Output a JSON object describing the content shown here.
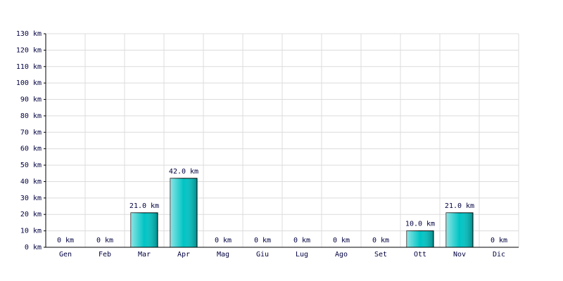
{
  "chart_data": {
    "type": "bar",
    "categories": [
      "Gen",
      "Feb",
      "Mar",
      "Apr",
      "Mag",
      "Giu",
      "Lug",
      "Ago",
      "Set",
      "Ott",
      "Nov",
      "Dic"
    ],
    "values": [
      0,
      0,
      21,
      42,
      0,
      0,
      0,
      0,
      0,
      10,
      21,
      0
    ],
    "value_labels": [
      "0 km",
      "0 km",
      "21.0 km",
      "42.0 km",
      "0 km",
      "0 km",
      "0 km",
      "0 km",
      "0 km",
      "10.0 km",
      "21.0 km",
      "0 km"
    ],
    "color": "#00c4c4",
    "ylim": [
      0,
      130
    ],
    "yticks": [
      {
        "value": 0,
        "label": "0 km"
      },
      {
        "value": 10,
        "label": "10 km"
      },
      {
        "value": 20,
        "label": "20 km"
      },
      {
        "value": 30,
        "label": "30 km"
      },
      {
        "value": 40,
        "label": "40 km"
      },
      {
        "value": 50,
        "label": "50 km"
      },
      {
        "value": 60,
        "label": "60 km"
      },
      {
        "value": 70,
        "label": "70 km"
      },
      {
        "value": 80,
        "label": "80 km"
      },
      {
        "value": 90,
        "label": "90 km"
      },
      {
        "value": 100,
        "label": "100 km"
      },
      {
        "value": 110,
        "label": "110 km"
      },
      {
        "value": 120,
        "label": "120 km"
      },
      {
        "value": 130,
        "label": "130 km"
      }
    ],
    "grid": true
  }
}
